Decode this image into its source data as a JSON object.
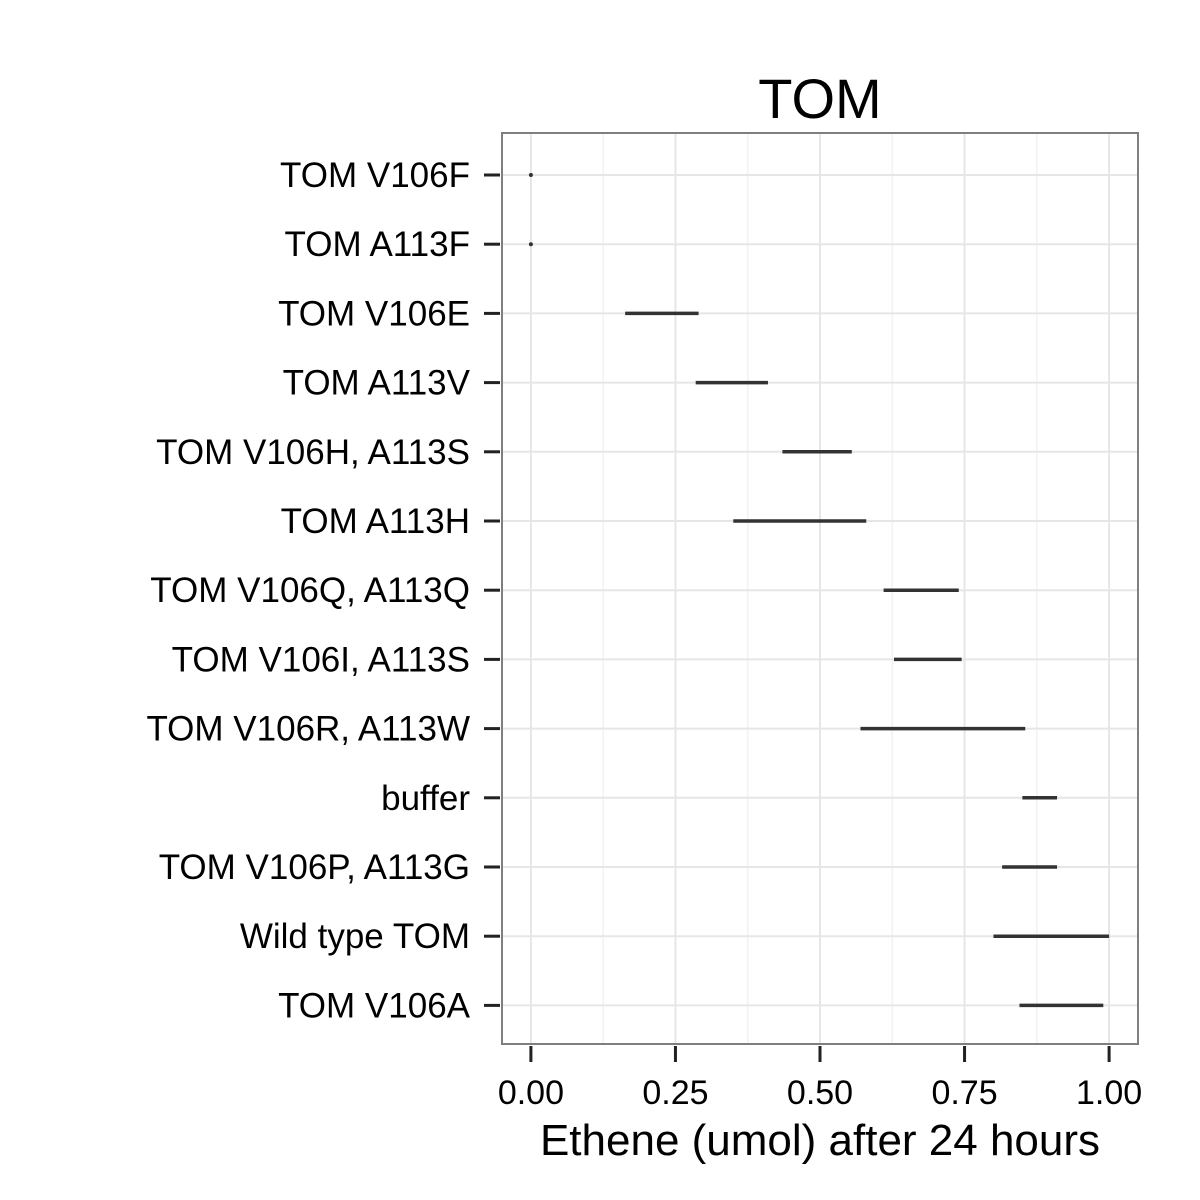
{
  "chart_data": {
    "type": "range",
    "title": "TOM",
    "xlabel": "Ethene (umol) after 24 hours",
    "ylabel": "",
    "xlim": [
      -0.05,
      1.05
    ],
    "x_ticks": [
      0.0,
      0.25,
      0.5,
      0.75,
      1.0
    ],
    "x_tick_labels": [
      "0.00",
      "0.25",
      "0.50",
      "0.75",
      "1.00"
    ],
    "x_minor_ticks": [
      0.125,
      0.375,
      0.625,
      0.875
    ],
    "grid": true,
    "categories": [
      "TOM V106F",
      "TOM A113F",
      "TOM V106E",
      "TOM A113V",
      "TOM V106H, A113S",
      "TOM A113H",
      "TOM V106Q, A113Q",
      "TOM V106I, A113S",
      "TOM V106R, A113W",
      "buffer",
      "TOM V106P, A113G",
      "Wild type TOM",
      "TOM V106A"
    ],
    "ranges": [
      [
        0.0,
        0.0
      ],
      [
        0.0,
        0.0
      ],
      [
        0.163,
        0.29
      ],
      [
        0.285,
        0.41
      ],
      [
        0.435,
        0.555
      ],
      [
        0.35,
        0.58
      ],
      [
        0.61,
        0.74
      ],
      [
        0.628,
        0.745
      ],
      [
        0.57,
        0.855
      ],
      [
        0.85,
        0.91
      ],
      [
        0.815,
        0.91
      ],
      [
        0.8,
        1.0
      ],
      [
        0.845,
        0.99
      ]
    ]
  }
}
